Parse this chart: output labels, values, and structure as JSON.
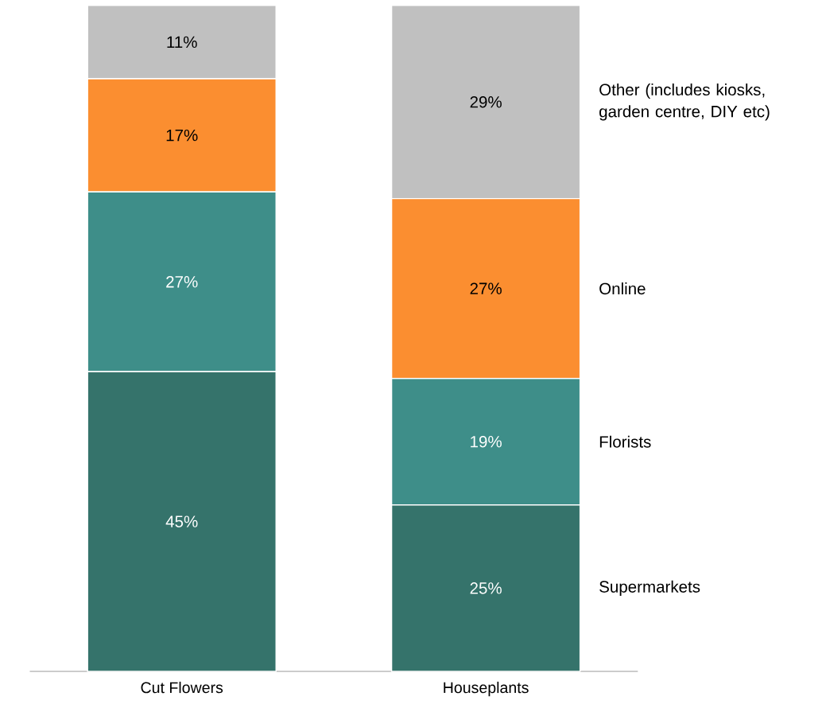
{
  "chart_data": {
    "type": "bar",
    "stacked": true,
    "categories": [
      "Cut Flowers",
      "Houseplants"
    ],
    "series": [
      {
        "name": "Supermarkets",
        "color": "#35736b",
        "values": [
          45,
          25
        ],
        "value_labels": [
          "45%",
          "25%"
        ]
      },
      {
        "name": "Florists",
        "color": "#3e8e89",
        "values": [
          27,
          19
        ],
        "value_labels": [
          "27%",
          "19%"
        ]
      },
      {
        "name": "Online",
        "color": "#fb8e30",
        "values": [
          17,
          27
        ],
        "value_labels": [
          "17%",
          "27%"
        ]
      },
      {
        "name": "Other (includes kiosks, garden centre, DIY etc)",
        "color": "#c0c0c0",
        "values": [
          11,
          29
        ],
        "value_labels": [
          "11%",
          "29%"
        ]
      }
    ]
  }
}
